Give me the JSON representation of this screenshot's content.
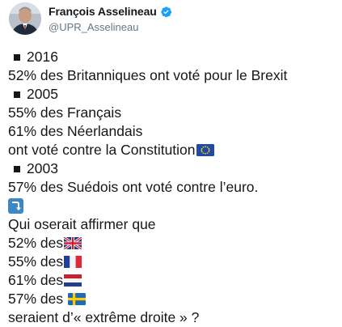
{
  "author": {
    "name": "François Asselineau",
    "handle": "@UPR_Asselineau",
    "verified": true
  },
  "icons": {
    "avatar": "avatar-photo",
    "verified": "verified-badge-icon",
    "bullet": "black-square-icon",
    "arrow": "arrow-right-hook-down-icon",
    "flags": [
      "eu-flag-icon",
      "uk-flag-icon",
      "france-flag-icon",
      "netherlands-flag-icon",
      "sweden-flag-icon"
    ]
  },
  "colors": {
    "verified_blue": "#1da1f2",
    "arrow_bg": "#3b88c3",
    "handle_gray": "#657786"
  },
  "tweet": {
    "lines": [
      "2016",
      "52% des Britanniques ont voté pour le Brexit",
      "2005",
      "55% des Français",
      "61% des Néerlandais",
      "ont voté contre la Constitution",
      "2003",
      "57% des Suédois ont voté contre l’euro.",
      "Qui oserait affirmer que",
      "52% des",
      "55% des",
      "61% des",
      "57% des ",
      "seraient d’« extrême droite » ?"
    ]
  }
}
